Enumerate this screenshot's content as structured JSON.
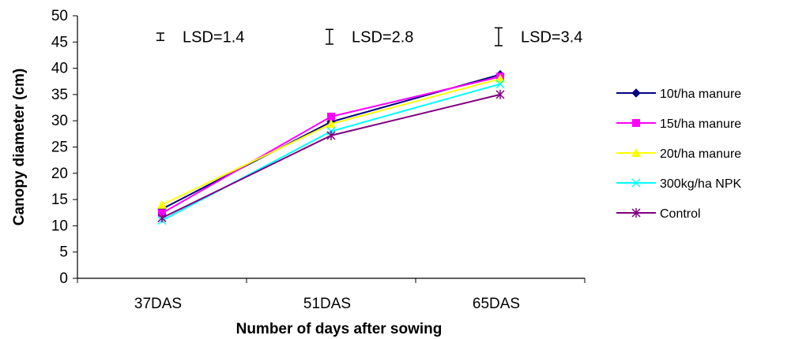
{
  "chart_data": {
    "type": "line",
    "categories": [
      "37DAS",
      "51DAS",
      "65DAS"
    ],
    "xlabel": "Number of days after sowing",
    "ylabel": "Canopy diameter (cm)",
    "ylim": [
      0,
      50
    ],
    "yticks": [
      0,
      5,
      10,
      15,
      20,
      25,
      30,
      35,
      40,
      45,
      50
    ],
    "grid": false,
    "legend_position": "right",
    "series": [
      {
        "name": "10t/ha manure",
        "values": [
          13.2,
          29.8,
          38.8
        ],
        "color": "#000080",
        "marker": "diamond"
      },
      {
        "name": "15t/ha manure",
        "values": [
          12.4,
          30.8,
          38.4
        ],
        "color": "#FF00FF",
        "marker": "square"
      },
      {
        "name": "20t/ha manure",
        "values": [
          14.0,
          29.4,
          38.0
        ],
        "color": "#FFFF00",
        "marker": "triangle"
      },
      {
        "name": "300kg/ha NPK",
        "values": [
          11.0,
          28.0,
          37.0
        ],
        "color": "#00FFFF",
        "marker": "x"
      },
      {
        "name": "Control",
        "values": [
          11.5,
          27.2,
          35.0
        ],
        "color": "#800080",
        "marker": "star"
      }
    ],
    "annotations": [
      {
        "label": "LSD=1.4",
        "category": "37DAS",
        "y": 46,
        "bar": 1.4
      },
      {
        "label": "LSD=2.8",
        "category": "51DAS",
        "y": 46,
        "bar": 2.8
      },
      {
        "label": "LSD=3.4",
        "category": "65DAS",
        "y": 46,
        "bar": 3.4
      }
    ]
  }
}
